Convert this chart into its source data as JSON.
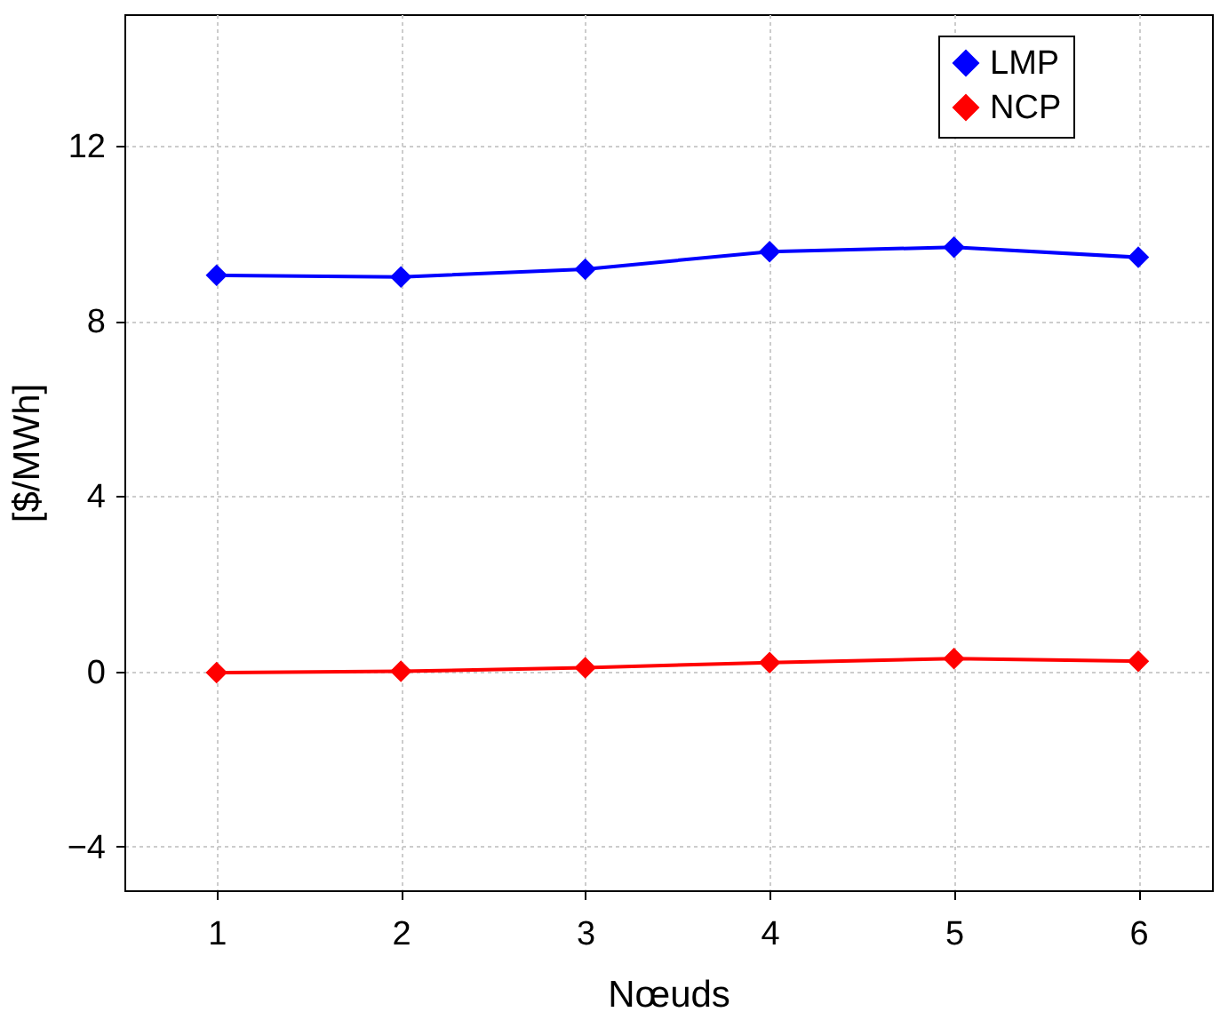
{
  "chart_data": {
    "type": "line",
    "xlabel": "Nœuds",
    "ylabel": "[$/MWh]",
    "x": [
      1,
      2,
      3,
      4,
      5,
      6
    ],
    "xlim": [
      0.5,
      6.4
    ],
    "xticks": [
      1,
      2,
      3,
      4,
      5,
      6
    ],
    "ylim": [
      -5,
      15
    ],
    "yticks": [
      -4,
      0,
      4,
      8,
      12
    ],
    "grid": true,
    "legend": "top right",
    "marker": "diamond",
    "line_style": "solid",
    "series": [
      {
        "name": "LMP",
        "color": "#0000ff",
        "values": [
          9.04,
          9.0,
          9.18,
          9.58,
          9.68,
          9.45
        ]
      },
      {
        "name": "NCP",
        "color": "#ff0000",
        "values": [
          -0.03,
          0.0,
          0.08,
          0.2,
          0.29,
          0.23
        ]
      }
    ]
  }
}
